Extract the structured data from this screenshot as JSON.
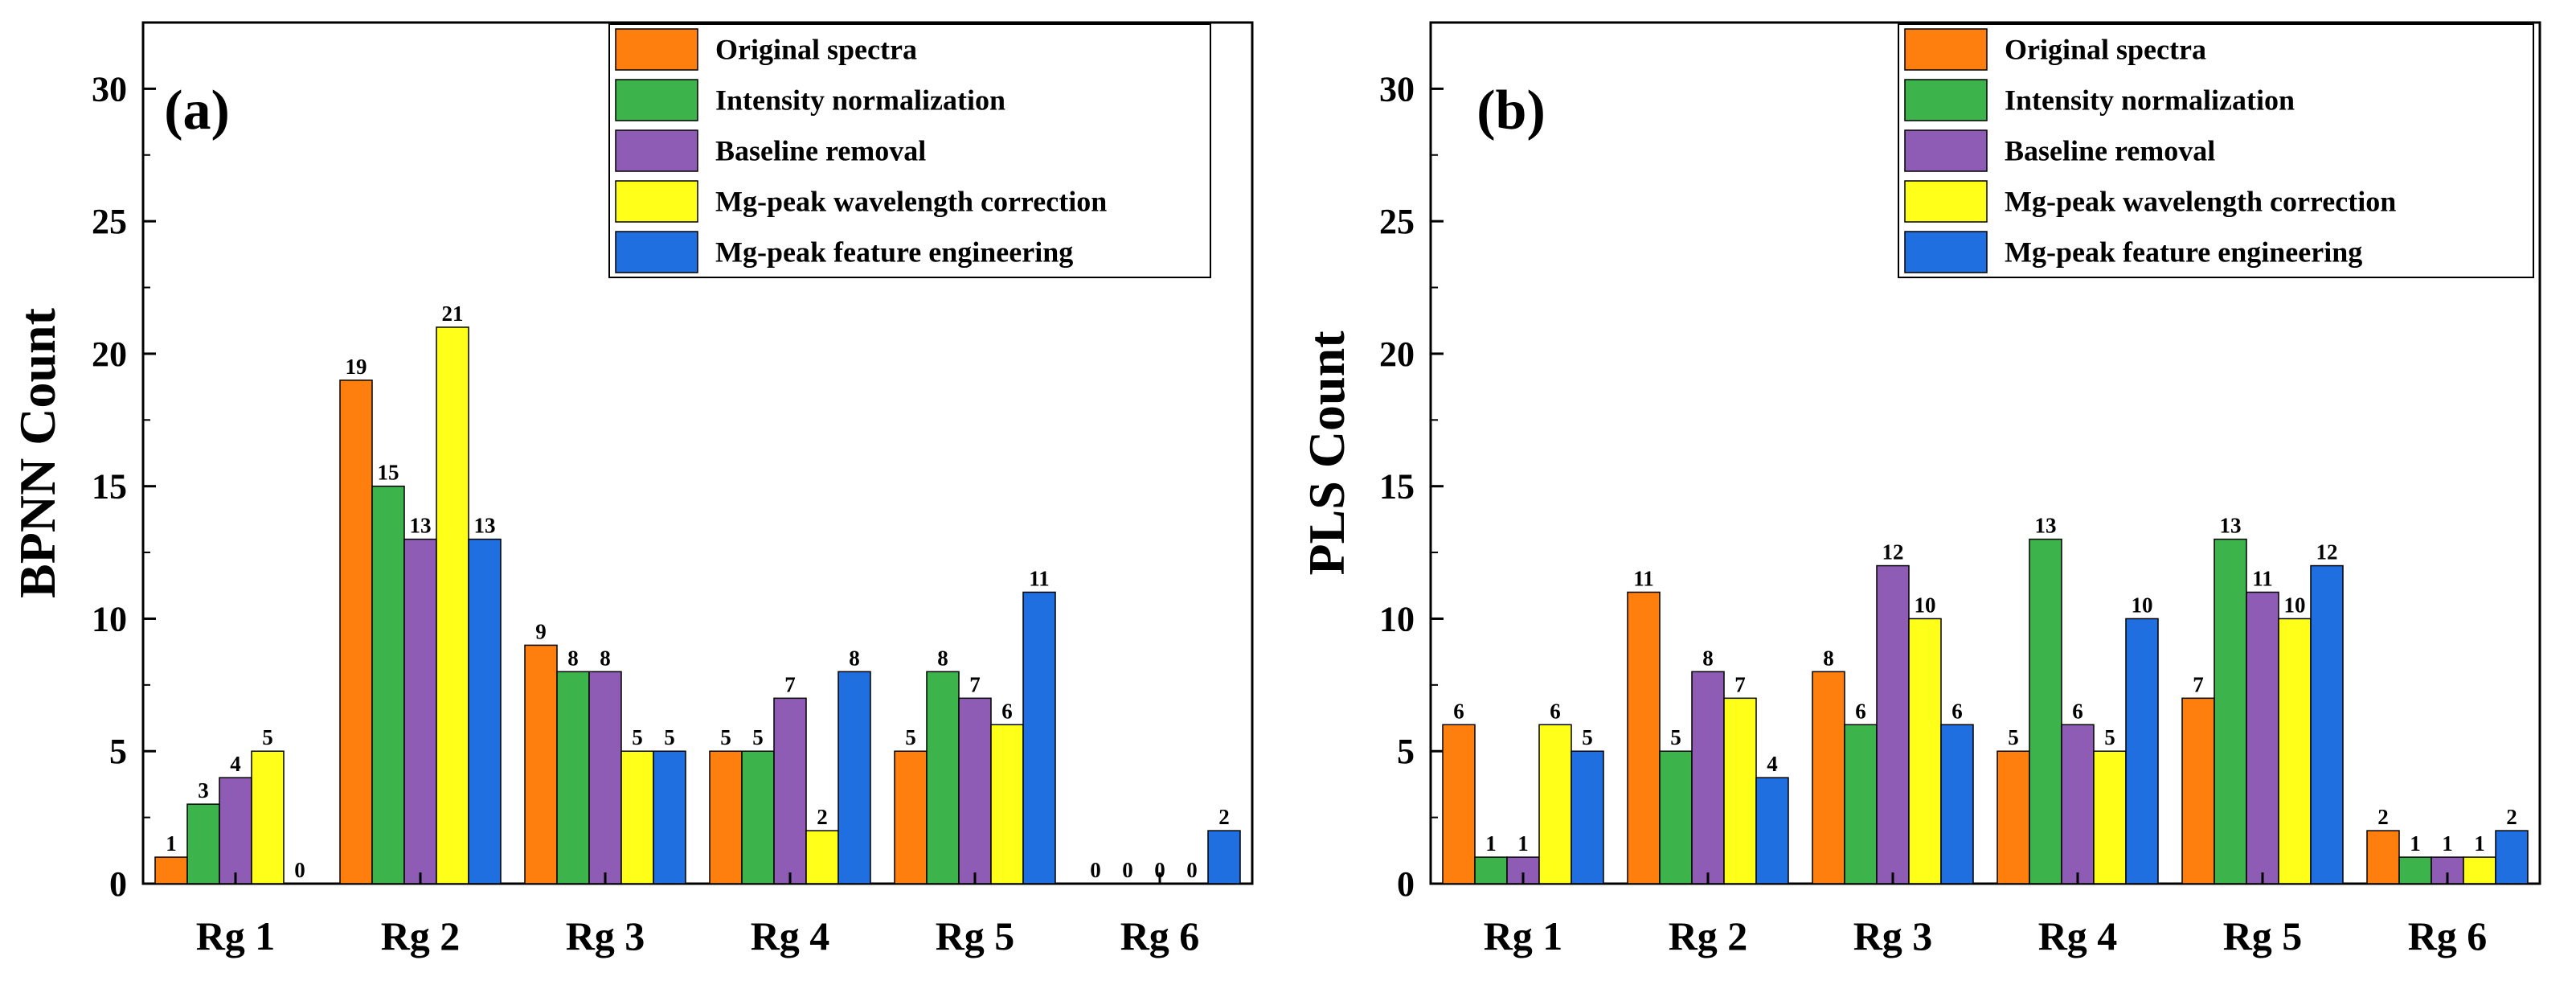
{
  "chart_data": [
    {
      "type": "bar",
      "panel_label": "(a)",
      "ylabel": "BPNN Count",
      "xlabel": "",
      "ylim": [
        0,
        32.5
      ],
      "yticks": [
        "0",
        "5",
        "10",
        "15",
        "20",
        "25",
        "30"
      ],
      "ytick_values": [
        0,
        5,
        10,
        15,
        20,
        25,
        30
      ],
      "categories": [
        "Rg 1",
        "Rg 2",
        "Rg 3",
        "Rg 4",
        "Rg 5",
        "Rg 6"
      ],
      "legend_position": "top-right",
      "series": [
        {
          "name": "Original spectra",
          "color": "#FF7F0E",
          "values": [
            1,
            19,
            9,
            5,
            5,
            0
          ],
          "labels": [
            "1",
            "19",
            "9",
            "5",
            "5",
            "0"
          ]
        },
        {
          "name": "Intensity normalization",
          "color": "#3CB44B",
          "values": [
            3,
            15,
            8,
            5,
            8,
            0
          ],
          "labels": [
            "3",
            "15",
            "8",
            "5",
            "8",
            "0"
          ]
        },
        {
          "name": "Baseline removal",
          "color": "#8E5BB5",
          "values": [
            4,
            13,
            8,
            7,
            7,
            0
          ],
          "labels": [
            "4",
            "13",
            "8",
            "7",
            "7",
            "0"
          ]
        },
        {
          "name": "Mg-peak wavelength correction",
          "color": "#FFFF1A",
          "values": [
            5,
            21,
            5,
            2,
            6,
            0
          ],
          "labels": [
            "5",
            "21",
            "5",
            "2",
            "6",
            "0"
          ]
        },
        {
          "name": "Mg-peak feature engineering",
          "color": "#1F6FE0",
          "values": [
            0,
            13,
            5,
            8,
            11,
            2
          ],
          "labels": [
            "0",
            "13",
            "5",
            "8",
            "11",
            "2"
          ]
        }
      ]
    },
    {
      "type": "bar",
      "panel_label": "(b)",
      "ylabel": "PLS Count",
      "xlabel": "",
      "ylim": [
        0,
        32.5
      ],
      "yticks": [
        "0",
        "5",
        "10",
        "15",
        "20",
        "25",
        "30"
      ],
      "ytick_values": [
        0,
        5,
        10,
        15,
        20,
        25,
        30
      ],
      "categories": [
        "Rg 1",
        "Rg 2",
        "Rg 3",
        "Rg 4",
        "Rg 5",
        "Rg 6"
      ],
      "legend_position": "top-right",
      "series": [
        {
          "name": "Original spectra",
          "color": "#FF7F0E",
          "values": [
            6,
            11,
            8,
            5,
            7,
            2
          ],
          "labels": [
            "6",
            "11",
            "8",
            "5",
            "7",
            "2"
          ]
        },
        {
          "name": "Intensity normalization",
          "color": "#3CB44B",
          "values": [
            1,
            5,
            6,
            13,
            13,
            1
          ],
          "labels": [
            "1",
            "5",
            "6",
            "13",
            "13",
            "1"
          ]
        },
        {
          "name": "Baseline removal",
          "color": "#8E5BB5",
          "values": [
            1,
            8,
            12,
            6,
            11,
            1
          ],
          "labels": [
            "1",
            "8",
            "12",
            "6",
            "11",
            "1"
          ]
        },
        {
          "name": "Mg-peak wavelength correction",
          "color": "#FFFF1A",
          "values": [
            6,
            7,
            10,
            5,
            10,
            1
          ],
          "labels": [
            "6",
            "7",
            "10",
            "5",
            "10",
            "1"
          ]
        },
        {
          "name": "Mg-peak feature engineering",
          "color": "#1F6FE0",
          "values": [
            5,
            4,
            6,
            10,
            12,
            2
          ],
          "labels": [
            "5",
            "4",
            "6",
            "10",
            "12",
            "2"
          ]
        }
      ]
    }
  ]
}
